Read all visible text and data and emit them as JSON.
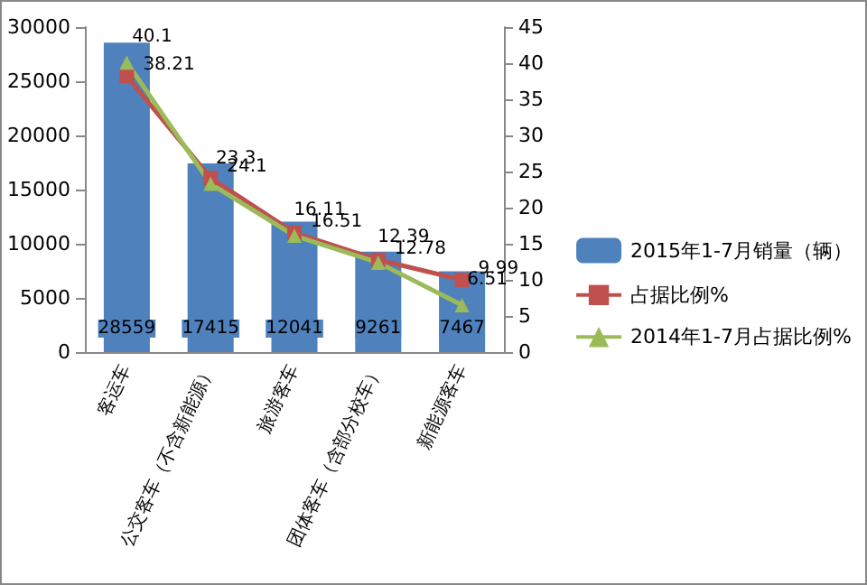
{
  "chart_data": {
    "type": "bar",
    "categories": [
      "客运车",
      "公交客车（不含新能源）",
      "旅游客车",
      "团体客车（含部分校车）",
      "新能源客车"
    ],
    "series": [
      {
        "name": "2015年1-7月销量（辆）",
        "color": "#4f81bd",
        "values": [
          28559,
          17415,
          12041,
          9261,
          7467
        ]
      },
      {
        "name": "占据比例%",
        "type": "line",
        "axis": "y2",
        "marker": "square",
        "color": "#c0504d",
        "values": [
          38.21,
          24.1,
          16.51,
          12.78,
          9.99
        ]
      },
      {
        "name": "2014年1-7月占据比例%",
        "type": "line",
        "axis": "y2",
        "marker": "triangle",
        "color": "#9bbb59",
        "values": [
          40.1,
          23.3,
          16.11,
          12.39,
          6.51
        ]
      }
    ],
    "ylim": [
      0,
      30000
    ],
    "yticks": [
      0,
      5000,
      10000,
      15000,
      20000,
      25000,
      30000
    ],
    "y2lim": [
      0,
      45
    ],
    "y2ticks": [
      0,
      5,
      10,
      15,
      20,
      25,
      30,
      35,
      40,
      45
    ],
    "data_labels": true,
    "legend": "right",
    "grid": false
  }
}
